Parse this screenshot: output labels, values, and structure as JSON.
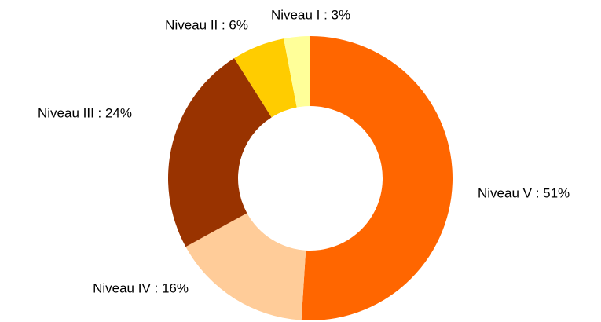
{
  "chart_data": {
    "type": "donut",
    "values": [
      51,
      16,
      24,
      6,
      3
    ],
    "value_labels": [
      "Niveau V : 51%",
      "Niveau IV : 16%",
      "Niveau III : 24%",
      "Niveau II : 6%",
      "Niveau I : 3%"
    ],
    "colors": [
      "#ff6600",
      "#ffcc99",
      "#993300",
      "#ffcc00",
      "#ffff99"
    ]
  }
}
